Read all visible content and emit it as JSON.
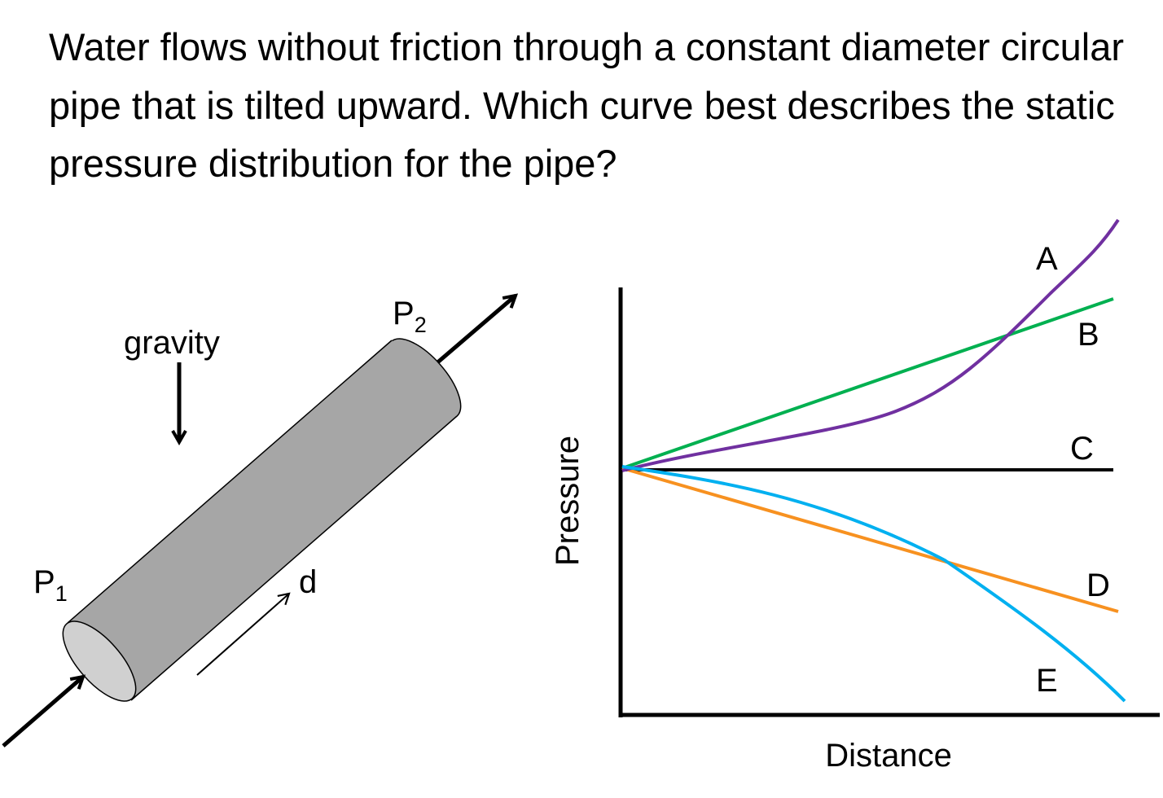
{
  "question": "Water flows without friction through a constant diameter circular pipe that is tilted upward. Which curve best describes the static pressure distribution for the pipe?",
  "pipe_figure": {
    "gravity_label": "gravity",
    "p1_label": "P",
    "p1_sub": "1",
    "p2_label": "P",
    "p2_sub": "2",
    "distance_label": "d",
    "colors": {
      "pipe_body": "#a6a6a6",
      "pipe_end": "#d0d0d0"
    }
  },
  "graph": {
    "ylabel": "Pressure",
    "xlabel": "Distance",
    "curves": [
      {
        "label": "A",
        "color": "#7030a0",
        "shape": "increasing, concave up"
      },
      {
        "label": "B",
        "color": "#00b050",
        "shape": "increasing linear"
      },
      {
        "label": "C",
        "color": "#000000",
        "shape": "constant"
      },
      {
        "label": "D",
        "color": "#f79120",
        "shape": "decreasing linear"
      },
      {
        "label": "E",
        "color": "#00b0f0",
        "shape": "decreasing, concave down"
      }
    ]
  }
}
